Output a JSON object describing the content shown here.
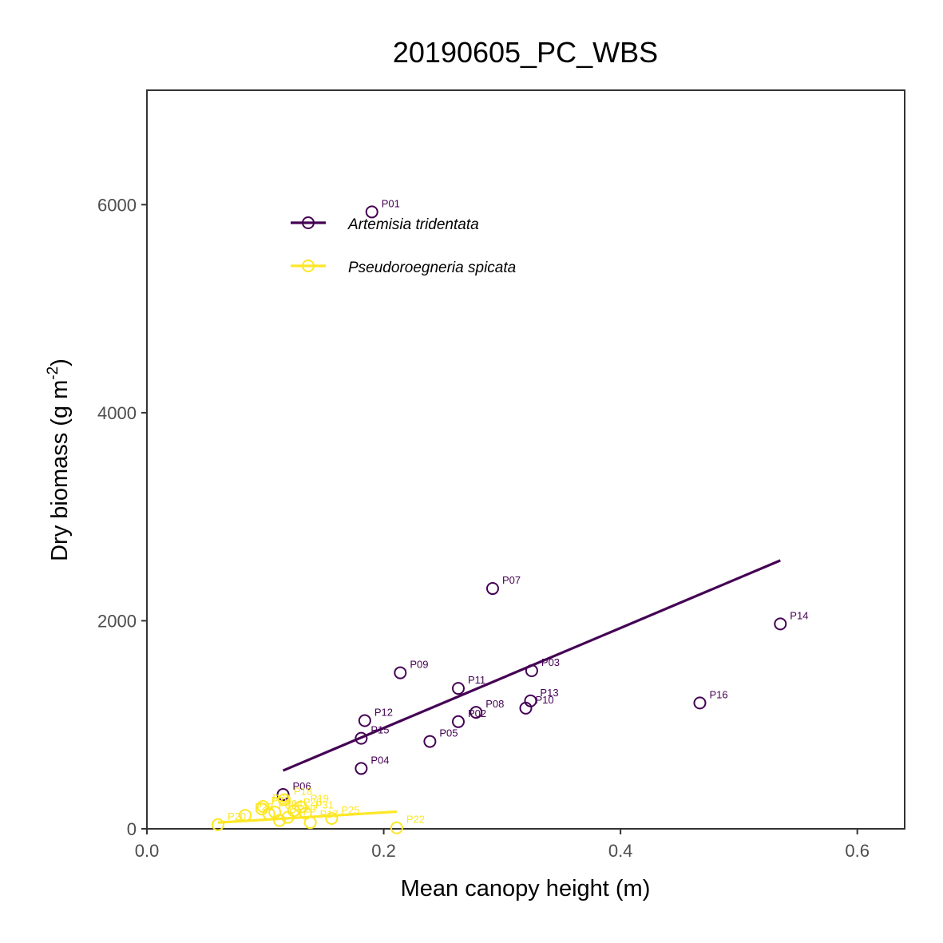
{
  "chart_data": {
    "type": "scatter",
    "title": "20190605_PC_WBS",
    "xlabel": "Mean canopy height (m)",
    "ylabel": {
      "prefix": "Dry biomass (g m",
      "sup": "-2",
      "suffix": ")"
    },
    "xlim": [
      0.0,
      0.64
    ],
    "ylim": [
      0,
      7100
    ],
    "x_ticks": [
      0.0,
      0.2,
      0.4,
      0.6
    ],
    "x_tick_labels": [
      "0.0",
      "0.2",
      "0.4",
      "0.6"
    ],
    "y_ticks": [
      0,
      2000,
      4000,
      6000
    ],
    "y_tick_labels": [
      "0",
      "2000",
      "4000",
      "6000"
    ],
    "grid": false,
    "legend_position": "top-left",
    "series": [
      {
        "name": "Artemisia tridentata",
        "color": "#440154",
        "points": [
          {
            "label": "P01",
            "x": 0.19,
            "y": 5930
          },
          {
            "label": "P07",
            "x": 0.292,
            "y": 2310
          },
          {
            "label": "P14",
            "x": 0.535,
            "y": 1970
          },
          {
            "label": "P09",
            "x": 0.214,
            "y": 1500
          },
          {
            "label": "P03",
            "x": 0.325,
            "y": 1520
          },
          {
            "label": "P11",
            "x": 0.263,
            "y": 1350
          },
          {
            "label": "P13",
            "x": 0.324,
            "y": 1230
          },
          {
            "label": "P10",
            "x": 0.32,
            "y": 1160
          },
          {
            "label": "P16",
            "x": 0.467,
            "y": 1210
          },
          {
            "label": "P08",
            "x": 0.278,
            "y": 1120
          },
          {
            "label": "P02",
            "x": 0.263,
            "y": 1030
          },
          {
            "label": "P12",
            "x": 0.184,
            "y": 1040
          },
          {
            "label": "P15",
            "x": 0.181,
            "y": 870
          },
          {
            "label": "P05",
            "x": 0.239,
            "y": 840
          },
          {
            "label": "P04",
            "x": 0.181,
            "y": 580
          },
          {
            "label": "P06",
            "x": 0.115,
            "y": 330
          }
        ],
        "fit_line": {
          "x": [
            0.115,
            0.535
          ],
          "y": [
            560,
            2580
          ]
        }
      },
      {
        "name": "Pseudoroegneria spicata",
        "color": "#fde725",
        "points": [
          {
            "label": "P22",
            "x": 0.211,
            "y": 10
          },
          {
            "label": "P25",
            "x": 0.156,
            "y": 100
          },
          {
            "label": "P19",
            "x": 0.13,
            "y": 210
          },
          {
            "label": "P20",
            "x": 0.06,
            "y": 40
          },
          {
            "label": "P17",
            "x": 0.138,
            "y": 60
          },
          {
            "label": "P18",
            "x": 0.116,
            "y": 280
          },
          {
            "label": "P21",
            "x": 0.098,
            "y": 215
          },
          {
            "label": "P23",
            "x": 0.083,
            "y": 130
          },
          {
            "label": "P24",
            "x": 0.108,
            "y": 160
          },
          {
            "label": "P26",
            "x": 0.124,
            "y": 175
          },
          {
            "label": "P27",
            "x": 0.112,
            "y": 80
          },
          {
            "label": "P28",
            "x": 0.097,
            "y": 190
          },
          {
            "label": "P29",
            "x": 0.119,
            "y": 110
          },
          {
            "label": "P30",
            "x": 0.103,
            "y": 145
          },
          {
            "label": "P31",
            "x": 0.134,
            "y": 150
          }
        ],
        "fit_line": {
          "x": [
            0.06,
            0.211
          ],
          "y": [
            60,
            165
          ]
        }
      }
    ]
  }
}
